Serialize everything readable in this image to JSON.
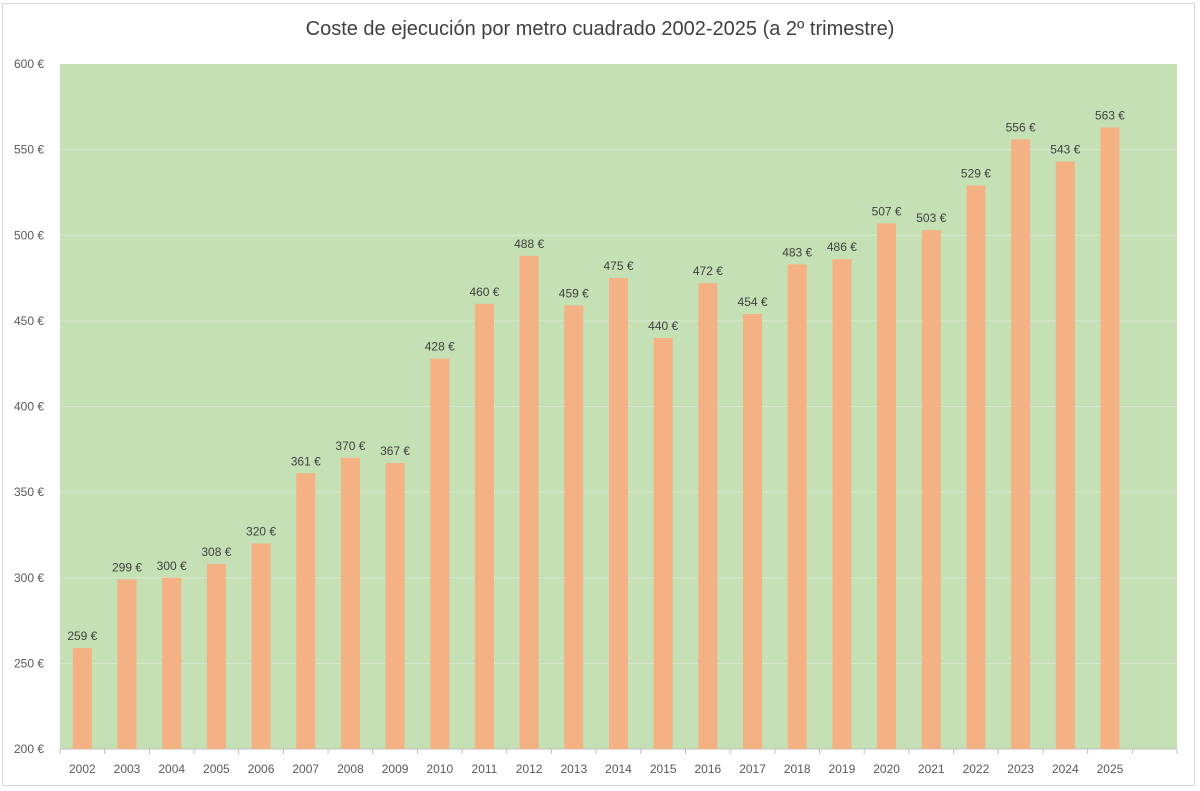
{
  "chart_data": {
    "type": "bar",
    "title": "Coste de ejecución por metro cuadrado 2002-2025 (a 2º trimestre)",
    "categories": [
      "2002",
      "2003",
      "2004",
      "2005",
      "2006",
      "2007",
      "2008",
      "2009",
      "2010",
      "2011",
      "2012",
      "2013",
      "2014",
      "2015",
      "2016",
      "2017",
      "2018",
      "2019",
      "2020",
      "2021",
      "2022",
      "2023",
      "2024",
      "2025"
    ],
    "values": [
      259,
      299,
      300,
      308,
      320,
      361,
      370,
      367,
      428,
      460,
      488,
      459,
      475,
      440,
      472,
      454,
      483,
      486,
      507,
      503,
      529,
      556,
      543,
      563
    ],
    "data_labels": [
      "259 €",
      "299 €",
      "300 €",
      "308 €",
      "320 €",
      "361 €",
      "370 €",
      "367 €",
      "428 €",
      "460 €",
      "488 €",
      "459 €",
      "475 €",
      "440 €",
      "472 €",
      "454 €",
      "483 €",
      "486 €",
      "507 €",
      "503 €",
      "529 €",
      "556 €",
      "543 €",
      "563 €"
    ],
    "y_ticks": [
      "200 €",
      "250 €",
      "300 €",
      "350 €",
      "400 €",
      "450 €",
      "500 €",
      "550 €",
      "600 €"
    ],
    "ylim": [
      200,
      600
    ],
    "xlabel": "",
    "ylabel": "",
    "grid": true,
    "legend": "none",
    "colors": {
      "bar": "#f4b183",
      "plot_background": "#c5e0b4",
      "grid": "#d9e8cf"
    }
  }
}
